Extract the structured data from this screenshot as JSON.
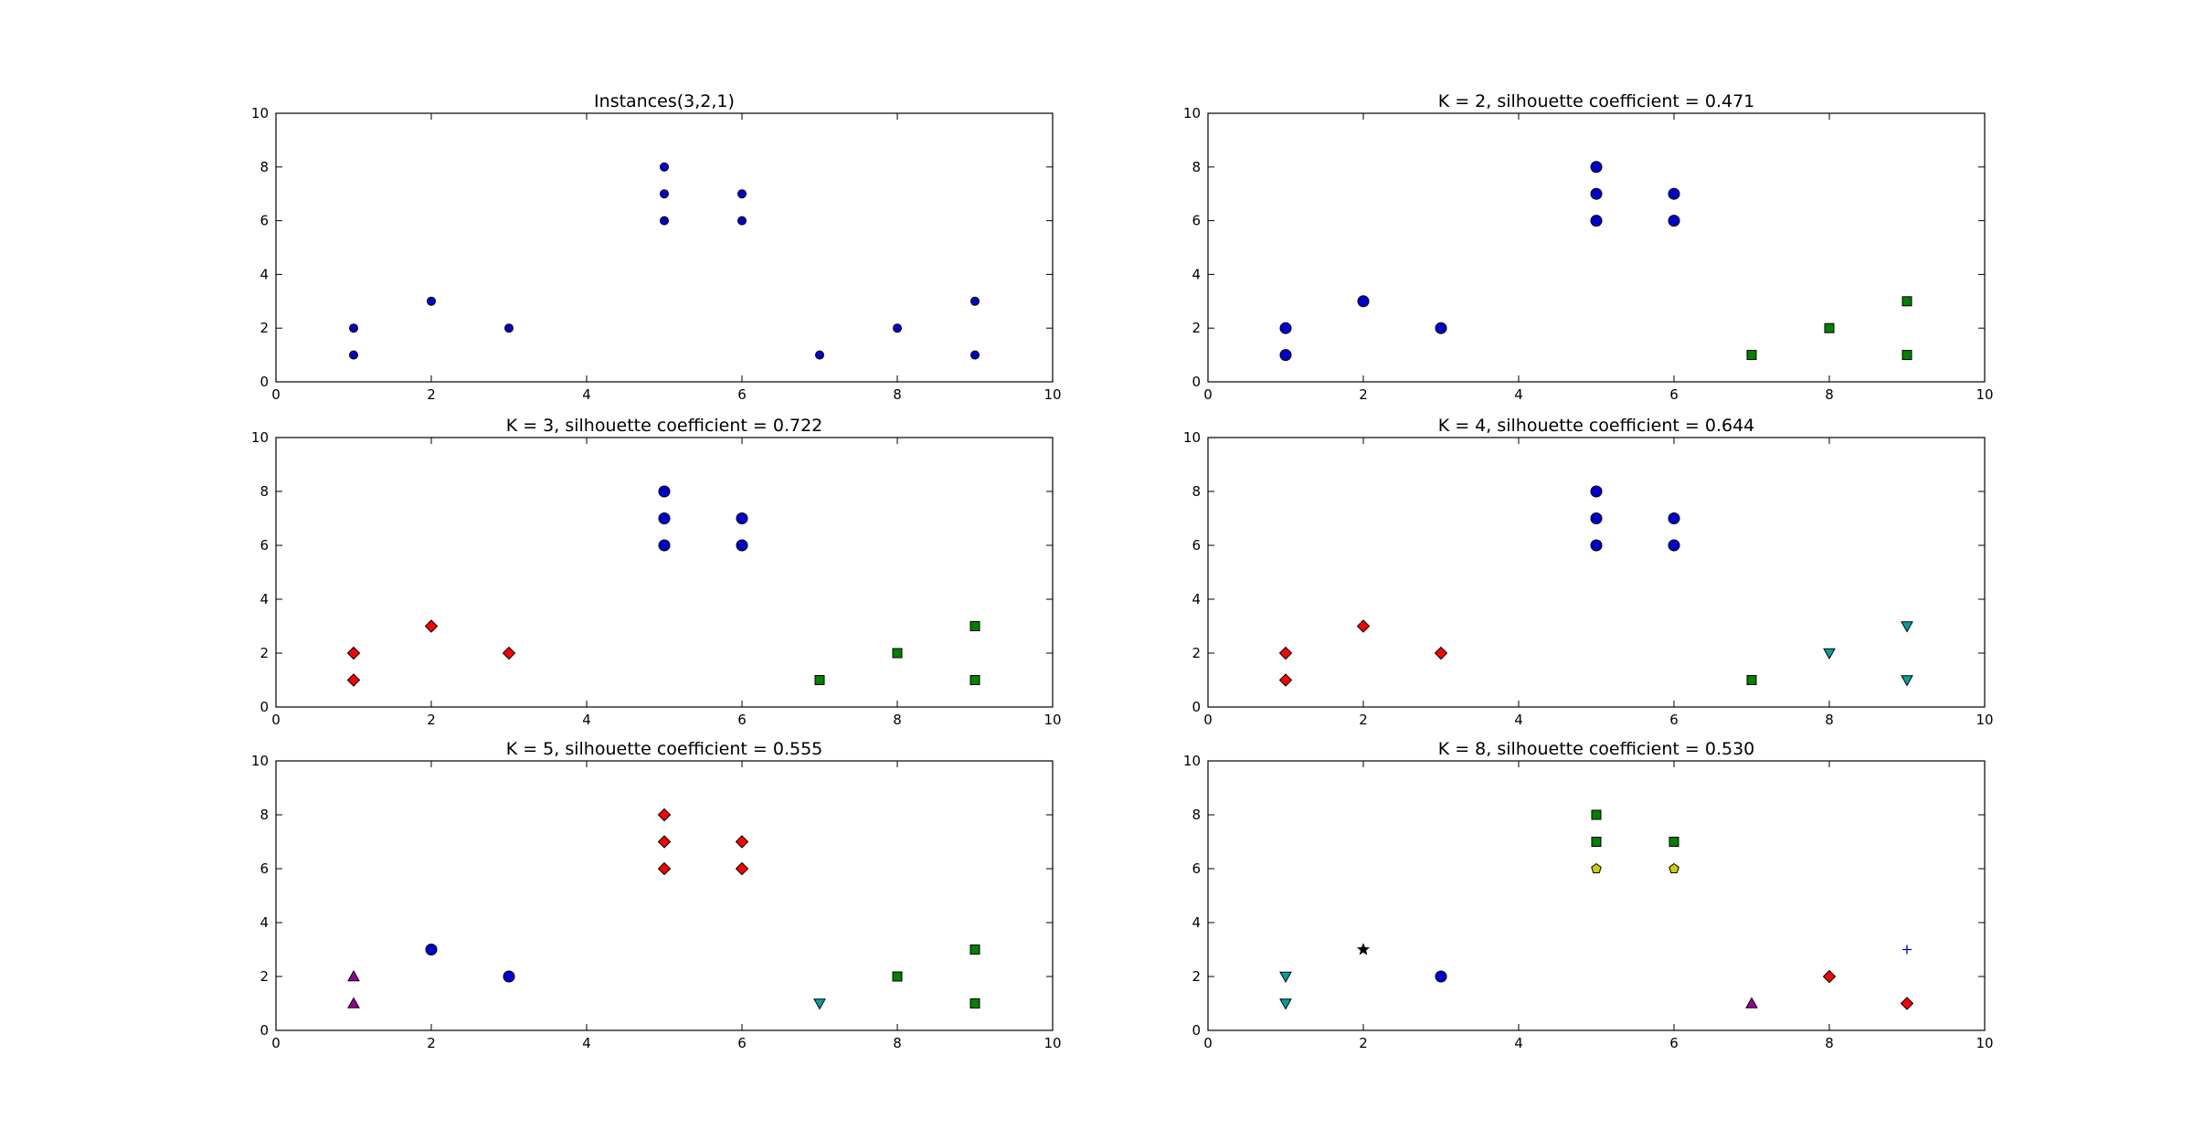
{
  "chart_data": [
    {
      "type": "scatter",
      "title": "Instances(3,2,1)",
      "xlim": [
        0,
        10
      ],
      "ylim": [
        0,
        10
      ],
      "xticks": [
        "0",
        "2",
        "4",
        "6",
        "8",
        "10"
      ],
      "yticks": [
        "0",
        "2",
        "4",
        "6",
        "8",
        "10"
      ],
      "grid": false,
      "series": [
        {
          "color": "#0000cc",
          "marker": "circle",
          "size": "small",
          "points": [
            [
              1,
              1
            ],
            [
              1,
              2
            ],
            [
              2,
              3
            ],
            [
              3,
              2
            ],
            [
              5,
              6
            ],
            [
              5,
              7
            ],
            [
              5,
              8
            ],
            [
              6,
              6
            ],
            [
              6,
              7
            ],
            [
              7,
              1
            ],
            [
              8,
              2
            ],
            [
              9,
              1
            ],
            [
              9,
              3
            ]
          ]
        }
      ]
    },
    {
      "type": "scatter",
      "title": "K = 2, silhouette coefficient = 0.471",
      "xlim": [
        0,
        10
      ],
      "ylim": [
        0,
        10
      ],
      "xticks": [
        "0",
        "2",
        "4",
        "6",
        "8",
        "10"
      ],
      "yticks": [
        "0",
        "2",
        "4",
        "6",
        "8",
        "10"
      ],
      "grid": false,
      "series": [
        {
          "color": "#0000cc",
          "marker": "circle",
          "points": [
            [
              1,
              1
            ],
            [
              1,
              2
            ],
            [
              2,
              3
            ],
            [
              3,
              2
            ],
            [
              5,
              6
            ],
            [
              5,
              7
            ],
            [
              5,
              8
            ],
            [
              6,
              6
            ],
            [
              6,
              7
            ]
          ]
        },
        {
          "color": "#008000",
          "marker": "square",
          "points": [
            [
              7,
              1
            ],
            [
              8,
              2
            ],
            [
              9,
              1
            ],
            [
              9,
              3
            ]
          ]
        }
      ]
    },
    {
      "type": "scatter",
      "title": "K = 3, silhouette coefficient = 0.722",
      "xlim": [
        0,
        10
      ],
      "ylim": [
        0,
        10
      ],
      "xticks": [
        "0",
        "2",
        "4",
        "6",
        "8",
        "10"
      ],
      "yticks": [
        "0",
        "2",
        "4",
        "6",
        "8",
        "10"
      ],
      "grid": false,
      "series": [
        {
          "color": "#0000cc",
          "marker": "circle",
          "points": [
            [
              5,
              6
            ],
            [
              5,
              7
            ],
            [
              5,
              8
            ],
            [
              6,
              6
            ],
            [
              6,
              7
            ]
          ]
        },
        {
          "color": "#ff0000",
          "marker": "diamond",
          "points": [
            [
              1,
              1
            ],
            [
              1,
              2
            ],
            [
              2,
              3
            ],
            [
              3,
              2
            ]
          ]
        },
        {
          "color": "#008000",
          "marker": "square",
          "points": [
            [
              7,
              1
            ],
            [
              8,
              2
            ],
            [
              9,
              1
            ],
            [
              9,
              3
            ]
          ]
        }
      ]
    },
    {
      "type": "scatter",
      "title": "K = 4, silhouette coefficient = 0.644",
      "xlim": [
        0,
        10
      ],
      "ylim": [
        0,
        10
      ],
      "xticks": [
        "0",
        "2",
        "4",
        "6",
        "8",
        "10"
      ],
      "yticks": [
        "0",
        "2",
        "4",
        "6",
        "8",
        "10"
      ],
      "grid": false,
      "series": [
        {
          "color": "#0000cc",
          "marker": "circle",
          "points": [
            [
              5,
              6
            ],
            [
              5,
              7
            ],
            [
              5,
              8
            ],
            [
              6,
              6
            ],
            [
              6,
              7
            ]
          ]
        },
        {
          "color": "#ff0000",
          "marker": "diamond",
          "points": [
            [
              1,
              1
            ],
            [
              1,
              2
            ],
            [
              2,
              3
            ],
            [
              3,
              2
            ]
          ]
        },
        {
          "color": "#008000",
          "marker": "square",
          "points": [
            [
              7,
              1
            ]
          ]
        },
        {
          "color": "#00a0a0",
          "marker": "triangle-down",
          "points": [
            [
              8,
              2
            ],
            [
              9,
              1
            ],
            [
              9,
              3
            ]
          ]
        }
      ]
    },
    {
      "type": "scatter",
      "title": "K = 5, silhouette coefficient = 0.555",
      "xlim": [
        0,
        10
      ],
      "ylim": [
        0,
        10
      ],
      "xticks": [
        "0",
        "2",
        "4",
        "6",
        "8",
        "10"
      ],
      "yticks": [
        "0",
        "2",
        "4",
        "6",
        "8",
        "10"
      ],
      "grid": false,
      "series": [
        {
          "color": "#ff0000",
          "marker": "diamond",
          "points": [
            [
              5,
              6
            ],
            [
              5,
              7
            ],
            [
              5,
              8
            ],
            [
              6,
              6
            ],
            [
              6,
              7
            ]
          ]
        },
        {
          "color": "#0000cc",
          "marker": "circle",
          "points": [
            [
              2,
              3
            ],
            [
              3,
              2
            ]
          ]
        },
        {
          "color": "#990099",
          "marker": "triangle-up",
          "points": [
            [
              1,
              1
            ],
            [
              1,
              2
            ]
          ]
        },
        {
          "color": "#00a0a0",
          "marker": "triangle-down",
          "points": [
            [
              7,
              1
            ]
          ]
        },
        {
          "color": "#008000",
          "marker": "square",
          "points": [
            [
              8,
              2
            ],
            [
              9,
              1
            ],
            [
              9,
              3
            ]
          ]
        }
      ]
    },
    {
      "type": "scatter",
      "title": "K = 8, silhouette coefficient = 0.530",
      "xlim": [
        0,
        10
      ],
      "ylim": [
        0,
        10
      ],
      "xticks": [
        "0",
        "2",
        "4",
        "6",
        "8",
        "10"
      ],
      "yticks": [
        "0",
        "2",
        "4",
        "6",
        "8",
        "10"
      ],
      "grid": false,
      "series": [
        {
          "color": "#008000",
          "marker": "square",
          "points": [
            [
              5,
              7
            ],
            [
              5,
              8
            ],
            [
              6,
              7
            ]
          ]
        },
        {
          "color": "#cccc00",
          "marker": "pentagon",
          "points": [
            [
              5,
              6
            ],
            [
              6,
              6
            ]
          ]
        },
        {
          "color": "#00a0a0",
          "marker": "triangle-down",
          "points": [
            [
              1,
              1
            ],
            [
              1,
              2
            ]
          ]
        },
        {
          "color": "#000000",
          "marker": "star",
          "points": [
            [
              2,
              3
            ]
          ]
        },
        {
          "color": "#0000cc",
          "marker": "circle",
          "points": [
            [
              3,
              2
            ]
          ]
        },
        {
          "color": "#990099",
          "marker": "triangle-up",
          "points": [
            [
              7,
              1
            ]
          ]
        },
        {
          "color": "#ff0000",
          "marker": "diamond",
          "points": [
            [
              8,
              2
            ],
            [
              9,
              1
            ]
          ]
        },
        {
          "color": "#0000cc",
          "marker": "plus",
          "points": [
            [
              9,
              3
            ]
          ]
        }
      ]
    }
  ]
}
